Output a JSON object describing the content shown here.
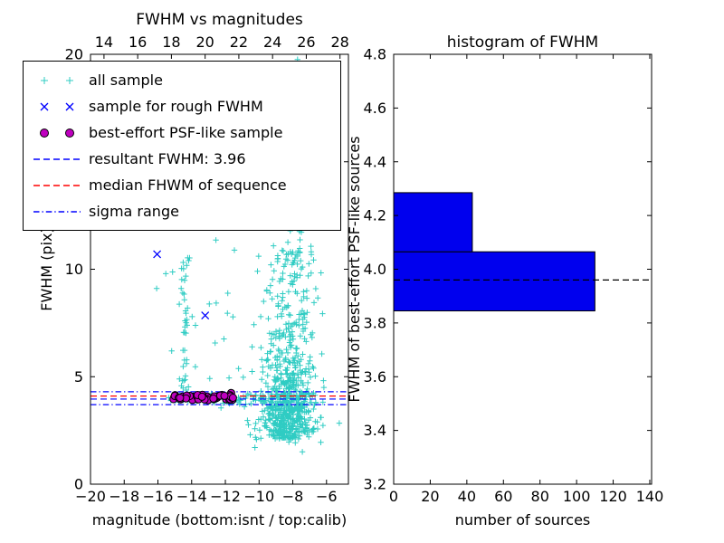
{
  "chart_data": [
    {
      "id": "scatter",
      "type": "scatter",
      "title": "FWHM vs magnitudes",
      "xlabel": "magnitude (bottom:isnt / top:calib)",
      "ylabel": "FWHM (pix)",
      "xlim": [
        -20,
        -4.7
      ],
      "top_xlim": [
        13.2,
        28.5
      ],
      "ylim": [
        0,
        20
      ],
      "xticks": [
        -20,
        -18,
        -16,
        -14,
        -12,
        -10,
        -8,
        -6
      ],
      "xtick_labels": [
        "−20",
        "−18",
        "−16",
        "−14",
        "−12",
        "−10",
        "−8",
        "−6"
      ],
      "top_xticks": [
        14,
        16,
        18,
        20,
        22,
        24,
        26,
        28
      ],
      "yticks": [
        0,
        5,
        10,
        15,
        20
      ],
      "seed": 20,
      "series": [
        {
          "name": "all-sample",
          "marker": "plus",
          "color": "#2fccc3",
          "clusters": [
            {
              "n": 480,
              "x": {
                "kind": "gauss",
                "mean": -8.3,
                "sd": 0.7
              },
              "y": {
                "kind": "absgauss",
                "base": 2.1,
                "scale": 2.1,
                "min": 1.3,
                "max": 20
              }
            },
            {
              "n": 200,
              "x": {
                "kind": "gauss",
                "mean": -8.2,
                "sd": 0.9
              },
              "y": {
                "kind": "uniform",
                "min": 2.5,
                "max": 11
              }
            },
            {
              "n": 80,
              "x": {
                "kind": "gauss",
                "mean": -7.9,
                "sd": 0.55
              },
              "y": {
                "kind": "uniform",
                "min": 10,
                "max": 20
              }
            },
            {
              "n": 85,
              "x": {
                "kind": "uniform",
                "min": -15.4,
                "max": -6.2
              },
              "y": {
                "kind": "gauss",
                "mean": 4.0,
                "sd": 0.18
              }
            },
            {
              "n": 40,
              "x": {
                "kind": "gauss",
                "mean": -14.45,
                "sd": 0.13
              },
              "y": {
                "kind": "uniform",
                "min": 4.2,
                "max": 10.6
              }
            },
            {
              "n": 45,
              "x": {
                "kind": "uniform",
                "min": -16.2,
                "max": -6.1
              },
              "y": {
                "kind": "uniform",
                "min": 4.5,
                "max": 13
              }
            },
            {
              "n": 25,
              "x": {
                "kind": "uniform",
                "min": -10.5,
                "max": -6.0
              },
              "y": {
                "kind": "uniform",
                "min": 1.5,
                "max": 4.0
              }
            },
            {
              "n": 6,
              "x": {
                "kind": "uniform",
                "min": -13.0,
                "max": -10.5
              },
              "y": {
                "kind": "uniform",
                "min": 13,
                "max": 19.8
              }
            }
          ]
        },
        {
          "name": "rough-fwhm-sample",
          "marker": "x",
          "color": "#0000ff",
          "points": [
            [
              -16.05,
              10.7
            ],
            [
              -13.2,
              7.85
            ]
          ]
        },
        {
          "name": "psf-like-sample",
          "marker": "circle",
          "color": "#bf00bf",
          "edge": "#000000",
          "clusters": [
            {
              "n": 55,
              "x": {
                "kind": "uniform",
                "min": -15.1,
                "max": -11.5
              },
              "y": {
                "kind": "gauss",
                "mean": 4.05,
                "sd": 0.07
              }
            }
          ]
        }
      ],
      "lines": [
        {
          "name": "sigma-upper-line",
          "y": 4.3,
          "color": "#0000ff",
          "style": "dashdot"
        },
        {
          "name": "sigma-lower-line",
          "y": 3.7,
          "color": "#0000ff",
          "style": "dashdot"
        },
        {
          "name": "median-fwhm-line",
          "y": 4.1,
          "color": "#ff0000",
          "style": "dashed"
        },
        {
          "name": "resultant-fwhm-line",
          "y": 3.96,
          "color": "#0000ff",
          "style": "dashed"
        }
      ],
      "resultant_fwhm": 3.96,
      "legend": [
        {
          "name": "all-sample",
          "label": "all sample",
          "marker": "plus",
          "color": "#2fccc3"
        },
        {
          "name": "rough-sample",
          "label": "sample for rough FWHM",
          "marker": "x",
          "color": "#0000ff"
        },
        {
          "name": "psf-sample",
          "label": "best-effort PSF-like sample",
          "marker": "circle",
          "color": "#bf00bf",
          "edge": "#000000"
        },
        {
          "name": "resultant-fwhm",
          "label": "resultant FWHM: 3.96",
          "marker": "dashed-line",
          "color": "#0000ff"
        },
        {
          "name": "median-fwhm",
          "label": "median FHWM of sequence",
          "marker": "dashed-line",
          "color": "#ff0000"
        },
        {
          "name": "sigma-range",
          "label": "sigma range",
          "marker": "dashdot-line",
          "color": "#0000ff"
        }
      ]
    },
    {
      "id": "histogram",
      "type": "bar",
      "title": "histogram of FWHM",
      "xlabel": "number of sources",
      "ylabel": "FWHM of best-effort PSF-like sources",
      "xlim": [
        0,
        141
      ],
      "ylim": [
        3.2,
        4.8
      ],
      "xticks": [
        0,
        20,
        40,
        60,
        80,
        100,
        120,
        140
      ],
      "yticks": [
        3.2,
        3.4,
        3.6,
        3.8,
        4.0,
        4.2,
        4.4,
        4.6,
        4.8
      ],
      "ytick_labels": [
        "3.2",
        "3.4",
        "3.6",
        "3.8",
        "4.0",
        "4.2",
        "4.4",
        "4.6",
        "4.8"
      ],
      "bars": [
        {
          "from": 3.845,
          "to": 4.065,
          "count": 110
        },
        {
          "from": 4.065,
          "to": 4.285,
          "count": 43
        }
      ],
      "bar_color": "#0000ee",
      "median_line": {
        "y": 3.96,
        "color": "#000000",
        "style": "dashed"
      }
    }
  ]
}
